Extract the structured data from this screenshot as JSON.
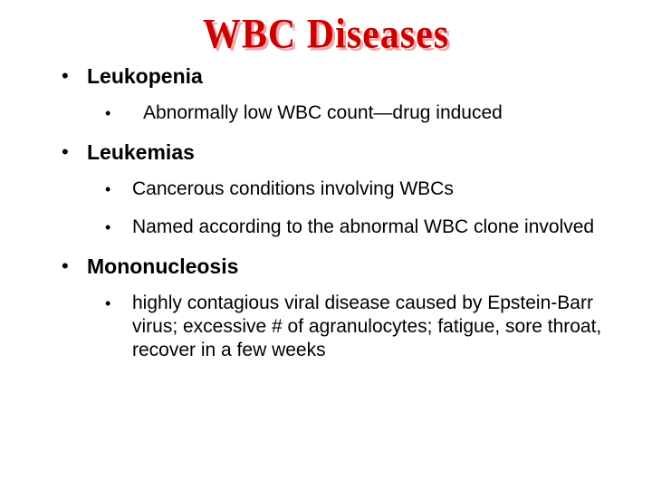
{
  "title": "WBC Diseases",
  "colors": {
    "title_color": "#cc0000",
    "title_shadow": "#f4a6a6",
    "text_color": "#000000",
    "background": "#ffffff"
  },
  "typography": {
    "title_font": "Times New Roman",
    "title_size_pt": 32,
    "title_weight": 900,
    "body_font": "Arial",
    "l1_size_pt": 17,
    "l1_weight": 700,
    "l2_size_pt": 16,
    "l2_weight": 400
  },
  "items": [
    {
      "label": "Leukopenia",
      "sub": [
        "Abnormally low WBC count—drug induced"
      ]
    },
    {
      "label": "Leukemias",
      "sub": [
        "Cancerous conditions involving WBCs",
        "Named according to the abnormal WBC clone involved"
      ]
    },
    {
      "label": "Mononucleosis",
      "sub": [
        "highly contagious viral disease caused by Epstein-Barr virus; excessive # of agranulocytes; fatigue, sore throat, recover in a few weeks"
      ]
    }
  ]
}
